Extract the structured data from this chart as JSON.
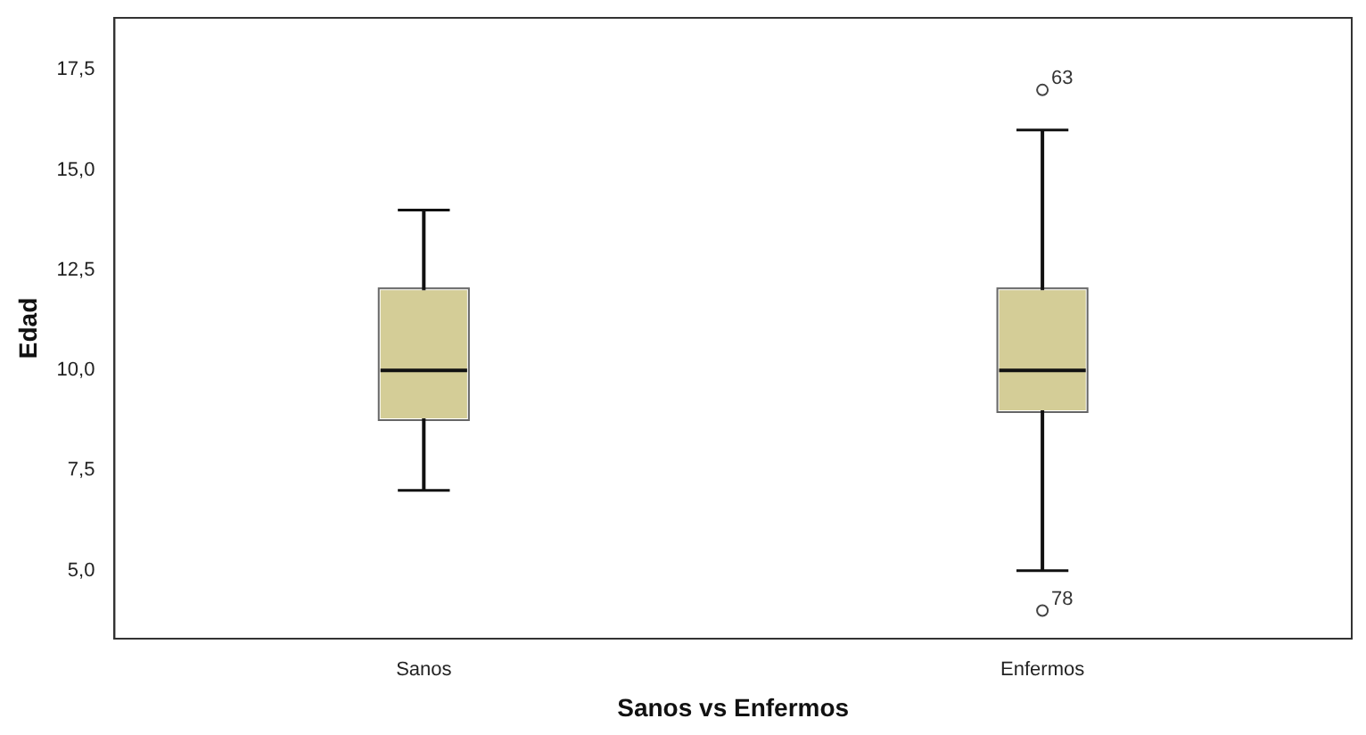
{
  "chart_data": {
    "type": "box",
    "xlabel": "Sanos vs Enfermos",
    "ylabel": "Edad",
    "categories": [
      "Sanos",
      "Enfermos"
    ],
    "boxes": [
      {
        "low": 7,
        "q1": 8.8,
        "median": 10,
        "q3": 12,
        "high": 14
      },
      {
        "low": 5,
        "q1": 9,
        "median": 10,
        "q3": 12,
        "high": 16,
        "outliers": [
          17,
          4
        ]
      }
    ],
    "color": "#d4cd97",
    "ylim": [
      3.3,
      18.8
    ],
    "yticks": [
      {
        "value": 5,
        "label": "5,0"
      },
      {
        "value": 7.5,
        "label": "7,5"
      },
      {
        "value": 10,
        "label": "10,0"
      },
      {
        "value": 12.5,
        "label": "12,5"
      },
      {
        "value": 15,
        "label": "15,0"
      },
      {
        "value": 17.5,
        "label": "17,5"
      }
    ],
    "annotations": [
      "63",
      "78"
    ],
    "grid": false,
    "legend": false
  }
}
